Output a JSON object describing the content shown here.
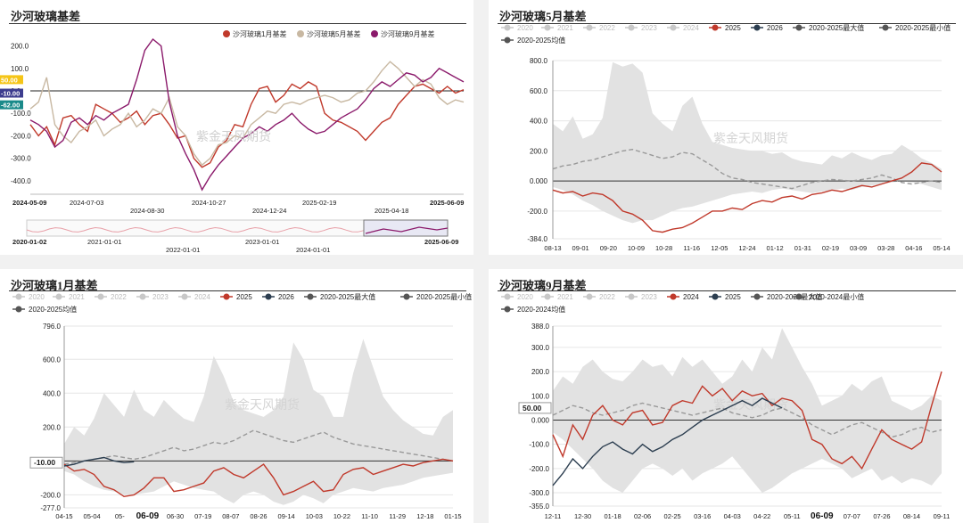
{
  "panels": {
    "p1": {
      "title": "沙河玻璃基差"
    },
    "p2": {
      "title": "沙河玻璃5月基差"
    },
    "p3": {
      "title": "沙河玻璃1月基差"
    },
    "p4": {
      "title": "沙河玻璃9月基差"
    }
  },
  "watermark": "紫金天风期货",
  "chart_data": [
    {
      "id": "p1",
      "type": "line",
      "title": "沙河玻璃基差",
      "legend": [
        "沙河玻璃1月基差",
        "沙河玻璃5月基差",
        "沙河玻璃9月基差"
      ],
      "colors": [
        "#c0392b",
        "#c8b8a2",
        "#8b1a6b"
      ],
      "yticks": [
        "200.0",
        "100.0",
        "0.0",
        "-100.0",
        "-200.0",
        "-300.0",
        "-400.0"
      ],
      "ylim": [
        -460,
        230
      ],
      "markers": [
        {
          "label": "50.00",
          "value": 50,
          "color": "#f5c518"
        },
        {
          "label": "-10.00",
          "value": -10,
          "color": "#3d3d8f"
        },
        {
          "label": "-62.00",
          "value": -62,
          "color": "#1a8a8a"
        }
      ],
      "xticks_top": [
        "2024-05-09",
        "2024-07-03",
        "2024-10-27",
        "2025-02-19",
        "2025-06-09"
      ],
      "xticks_bottom": [
        "2024-08-30",
        "2024-12-24",
        "2025-04-18"
      ],
      "series": [
        {
          "name": "沙河玻璃1月基差",
          "values": [
            -150,
            -200,
            -160,
            -240,
            -120,
            -110,
            -150,
            -180,
            -60,
            -80,
            -100,
            -140,
            -120,
            -90,
            -150,
            -110,
            -100,
            -150,
            -210,
            -200,
            -300,
            -340,
            -320,
            -250,
            -220,
            -150,
            -160,
            -60,
            10,
            20,
            -50,
            -20,
            30,
            10,
            40,
            20,
            -100,
            -130,
            -140,
            -160,
            -180,
            -220,
            -180,
            -140,
            -120,
            -60,
            -20,
            20,
            30,
            10,
            -10,
            20,
            -10,
            5
          ]
        },
        {
          "name": "沙河玻璃5月基差",
          "values": [
            -80,
            -50,
            60,
            -150,
            -200,
            -230,
            -180,
            -160,
            -130,
            -200,
            -170,
            -150,
            -100,
            -160,
            -130,
            -80,
            -100,
            -30,
            -160,
            -200,
            -280,
            -330,
            -300,
            -240,
            -230,
            -200,
            -210,
            -150,
            -120,
            -90,
            -100,
            -60,
            -50,
            -60,
            -40,
            -30,
            -20,
            -30,
            -50,
            -40,
            -10,
            0,
            40,
            90,
            130,
            100,
            60,
            20,
            50,
            30,
            -30,
            -60,
            -40,
            -50
          ]
        },
        {
          "name": "沙河玻璃9月基差",
          "values": [
            -130,
            -150,
            -180,
            -250,
            -220,
            -140,
            -120,
            -150,
            -110,
            -130,
            -100,
            -80,
            -60,
            50,
            180,
            230,
            200,
            -50,
            -200,
            -280,
            -350,
            -440,
            -380,
            -330,
            -290,
            -250,
            -210,
            -190,
            -160,
            -180,
            -150,
            -130,
            -100,
            -140,
            -170,
            -190,
            -180,
            -150,
            -120,
            -100,
            -80,
            -40,
            10,
            40,
            20,
            50,
            80,
            70,
            40,
            60,
            100,
            80,
            60,
            40
          ]
        }
      ],
      "navigator": {
        "labels_top": [
          "2020-01-02",
          "2021-01-01",
          "2023-01-01",
          "2025-06-09"
        ],
        "labels_bottom": [
          "2022-01-01",
          "2024-01-01"
        ]
      }
    },
    {
      "id": "p2",
      "type": "line",
      "title": "沙河玻璃5月基差",
      "legend": [
        "2020",
        "2021",
        "2022",
        "2023",
        "2024",
        "2025",
        "2026",
        "2020-2025最大值",
        "2020-2025最小值",
        "2020-2025均值"
      ],
      "yticks": [
        "800.0",
        "600.0",
        "400.0",
        "200.0",
        "0.000",
        "-200.0",
        "-384.0"
      ],
      "ytick_values": [
        800,
        600,
        400,
        200,
        0,
        -200,
        -384
      ],
      "ylim": [
        -384,
        800
      ],
      "xticks": [
        "08-13",
        "09-01",
        "09-20",
        "10-09",
        "10-28",
        "11-16",
        "12-05",
        "12-24",
        "01-12",
        "01-31",
        "02-19",
        "03-09",
        "03-28",
        "04-16",
        "05-14"
      ],
      "band_max": [
        380,
        330,
        430,
        280,
        310,
        420,
        790,
        760,
        780,
        720,
        450,
        380,
        330,
        500,
        560,
        380,
        260,
        240,
        220,
        210,
        200,
        200,
        180,
        190,
        150,
        130,
        120,
        110,
        170,
        150,
        190,
        160,
        140,
        170,
        180,
        240,
        200,
        150,
        120,
        80
      ],
      "band_min": [
        -40,
        -60,
        -90,
        -130,
        -160,
        -200,
        -230,
        -260,
        -280,
        -260,
        -260,
        -230,
        -200,
        -180,
        -170,
        -150,
        -130,
        -110,
        -90,
        -80,
        -70,
        -80,
        -60,
        -50,
        -60,
        -70,
        -80,
        -70,
        -60,
        -50,
        -60,
        -40,
        -30,
        -20,
        -10,
        0,
        -10,
        -20,
        -40,
        -60
      ],
      "mean": [
        80,
        100,
        110,
        130,
        140,
        160,
        180,
        200,
        210,
        190,
        170,
        150,
        160,
        190,
        180,
        140,
        100,
        50,
        20,
        10,
        -10,
        -20,
        -30,
        -40,
        -50,
        -30,
        -10,
        0,
        10,
        5,
        0,
        10,
        20,
        40,
        20,
        -10,
        -20,
        -10,
        0,
        -10
      ],
      "series": [
        {
          "name": "2025",
          "values": [
            -60,
            -80,
            -70,
            -100,
            -80,
            -90,
            -130,
            -200,
            -220,
            -260,
            -330,
            -340,
            -320,
            -310,
            -280,
            -240,
            -200,
            -200,
            -180,
            -190,
            -150,
            -130,
            -140,
            -110,
            -100,
            -120,
            -90,
            -80,
            -60,
            -70,
            -50,
            -30,
            -40,
            -20,
            0,
            20,
            60,
            120,
            110,
            60
          ]
        }
      ]
    },
    {
      "id": "p3",
      "type": "line",
      "title": "沙河玻璃1月基差",
      "legend": [
        "2020",
        "2021",
        "2022",
        "2023",
        "2024",
        "2025",
        "2026",
        "2020-2025最大值",
        "2020-2025最小值",
        "2020-2025均值"
      ],
      "yticks": [
        "796.0",
        "600.0",
        "400.0",
        "200.0",
        "0.000",
        "-200.0",
        "-277.0"
      ],
      "ytick_values": [
        796,
        600,
        400,
        200,
        0,
        -200,
        -277
      ],
      "ylim": [
        -277,
        796
      ],
      "marker": {
        "label": "-10.00",
        "value": -10
      },
      "xticks": [
        "04-15",
        "05-04",
        "05-",
        "06-09",
        "06-30",
        "07-19",
        "08-07",
        "08-26",
        "09-14",
        "10-03",
        "10-22",
        "11-10",
        "11-29",
        "12-18",
        "01-15"
      ],
      "highlight_xtick": "06-09",
      "band_max": [
        100,
        200,
        150,
        250,
        400,
        330,
        260,
        420,
        300,
        260,
        360,
        300,
        250,
        230,
        380,
        620,
        500,
        350,
        300,
        280,
        260,
        300,
        380,
        700,
        600,
        420,
        380,
        260,
        260,
        520,
        720,
        550,
        380,
        300,
        240,
        200,
        160,
        150,
        260,
        300
      ],
      "band_min": [
        -60,
        -80,
        -120,
        -150,
        -170,
        -180,
        -200,
        -200,
        -190,
        -180,
        -150,
        -120,
        -140,
        -160,
        -170,
        -180,
        -220,
        -250,
        -200,
        -180,
        -200,
        -240,
        -260,
        -240,
        -200,
        -220,
        -250,
        -200,
        -180,
        -160,
        -170,
        -180,
        -160,
        -150,
        -140,
        -120,
        -100,
        -90,
        -80,
        -70
      ],
      "mean": [
        -20,
        -10,
        0,
        10,
        20,
        30,
        20,
        10,
        20,
        40,
        60,
        80,
        60,
        70,
        90,
        110,
        100,
        120,
        150,
        180,
        160,
        140,
        120,
        110,
        130,
        150,
        170,
        140,
        120,
        100,
        90,
        80,
        70,
        60,
        50,
        40,
        30,
        20,
        10,
        0
      ],
      "series": [
        {
          "name": "2025",
          "values": [
            -20,
            -60,
            -50,
            -80,
            -150,
            -170,
            -210,
            -200,
            -160,
            -100,
            -100,
            -180,
            -170,
            -150,
            -130,
            -60,
            -40,
            -80,
            -100,
            -60,
            -20,
            -100,
            -200,
            -180,
            -150,
            -120,
            -180,
            -170,
            -80,
            -50,
            -40,
            -80,
            -60,
            -40,
            -20,
            -30,
            -10,
            0,
            10,
            0
          ]
        },
        {
          "name": "2026",
          "values": [
            -30,
            -20,
            0,
            10,
            20,
            0,
            -10,
            -5
          ]
        }
      ]
    },
    {
      "id": "p4",
      "type": "line",
      "title": "沙河玻璃9月基差",
      "legend": [
        "2020",
        "2021",
        "2022",
        "2023",
        "2024",
        "2025",
        "2020-2024最大值",
        "2020-2024最小值",
        "2020-2024均值"
      ],
      "yticks": [
        "388.0",
        "300.0",
        "200.0",
        "100.0",
        "0.000",
        "-100.0",
        "-200.0",
        "-300.0",
        "-355.0"
      ],
      "ytick_values": [
        388,
        300,
        200,
        100,
        0,
        -100,
        -200,
        -300,
        -355
      ],
      "ylim": [
        -355,
        388
      ],
      "marker": {
        "label": "50.00",
        "value": 50
      },
      "xticks": [
        "12-11",
        "12-30",
        "01-18",
        "02-06",
        "02-25",
        "03-16",
        "04-03",
        "04-22",
        "05-11",
        "06-09",
        "07-07",
        "07-26",
        "08-14",
        "09-11"
      ],
      "highlight_xtick": "06-09",
      "band_max": [
        120,
        180,
        150,
        220,
        250,
        200,
        170,
        160,
        200,
        250,
        220,
        230,
        180,
        260,
        220,
        250,
        200,
        150,
        180,
        250,
        200,
        300,
        250,
        380,
        300,
        220,
        150,
        60,
        80,
        100,
        150,
        120,
        160,
        180,
        80,
        60,
        40,
        60,
        100,
        80
      ],
      "band_min": [
        -50,
        -80,
        -120,
        -160,
        -200,
        -250,
        -280,
        -300,
        -250,
        -200,
        -180,
        -200,
        -230,
        -200,
        -250,
        -220,
        -200,
        -180,
        -150,
        -200,
        -250,
        -300,
        -280,
        -250,
        -220,
        -200,
        -180,
        -160,
        -180,
        -200,
        -240,
        -220,
        -200,
        -250,
        -230,
        -260,
        -240,
        -250,
        -270,
        -220
      ],
      "mean": [
        20,
        40,
        60,
        50,
        30,
        20,
        30,
        40,
        60,
        70,
        60,
        50,
        40,
        30,
        20,
        30,
        40,
        50,
        30,
        20,
        10,
        20,
        40,
        50,
        30,
        10,
        -20,
        -40,
        -60,
        -40,
        -20,
        -10,
        -30,
        -50,
        -70,
        -60,
        -40,
        -30,
        -50,
        -40
      ],
      "series": [
        {
          "name": "2024",
          "values": [
            -60,
            -150,
            -20,
            -80,
            20,
            60,
            0,
            -20,
            30,
            40,
            -20,
            -10,
            60,
            80,
            70,
            140,
            100,
            130,
            80,
            120,
            100,
            110,
            60,
            90,
            80,
            40,
            -80,
            -100,
            -160,
            -180,
            -150,
            -200,
            -120,
            -40,
            -80,
            -100,
            -120,
            -90,
            60,
            200
          ]
        },
        {
          "name": "2025",
          "values": [
            -270,
            -220,
            -160,
            -200,
            -150,
            -110,
            -90,
            -120,
            -140,
            -100,
            -130,
            -110,
            -80,
            -60,
            -30,
            0,
            20,
            40,
            60,
            80,
            60,
            90,
            70,
            50
          ]
        }
      ]
    }
  ]
}
